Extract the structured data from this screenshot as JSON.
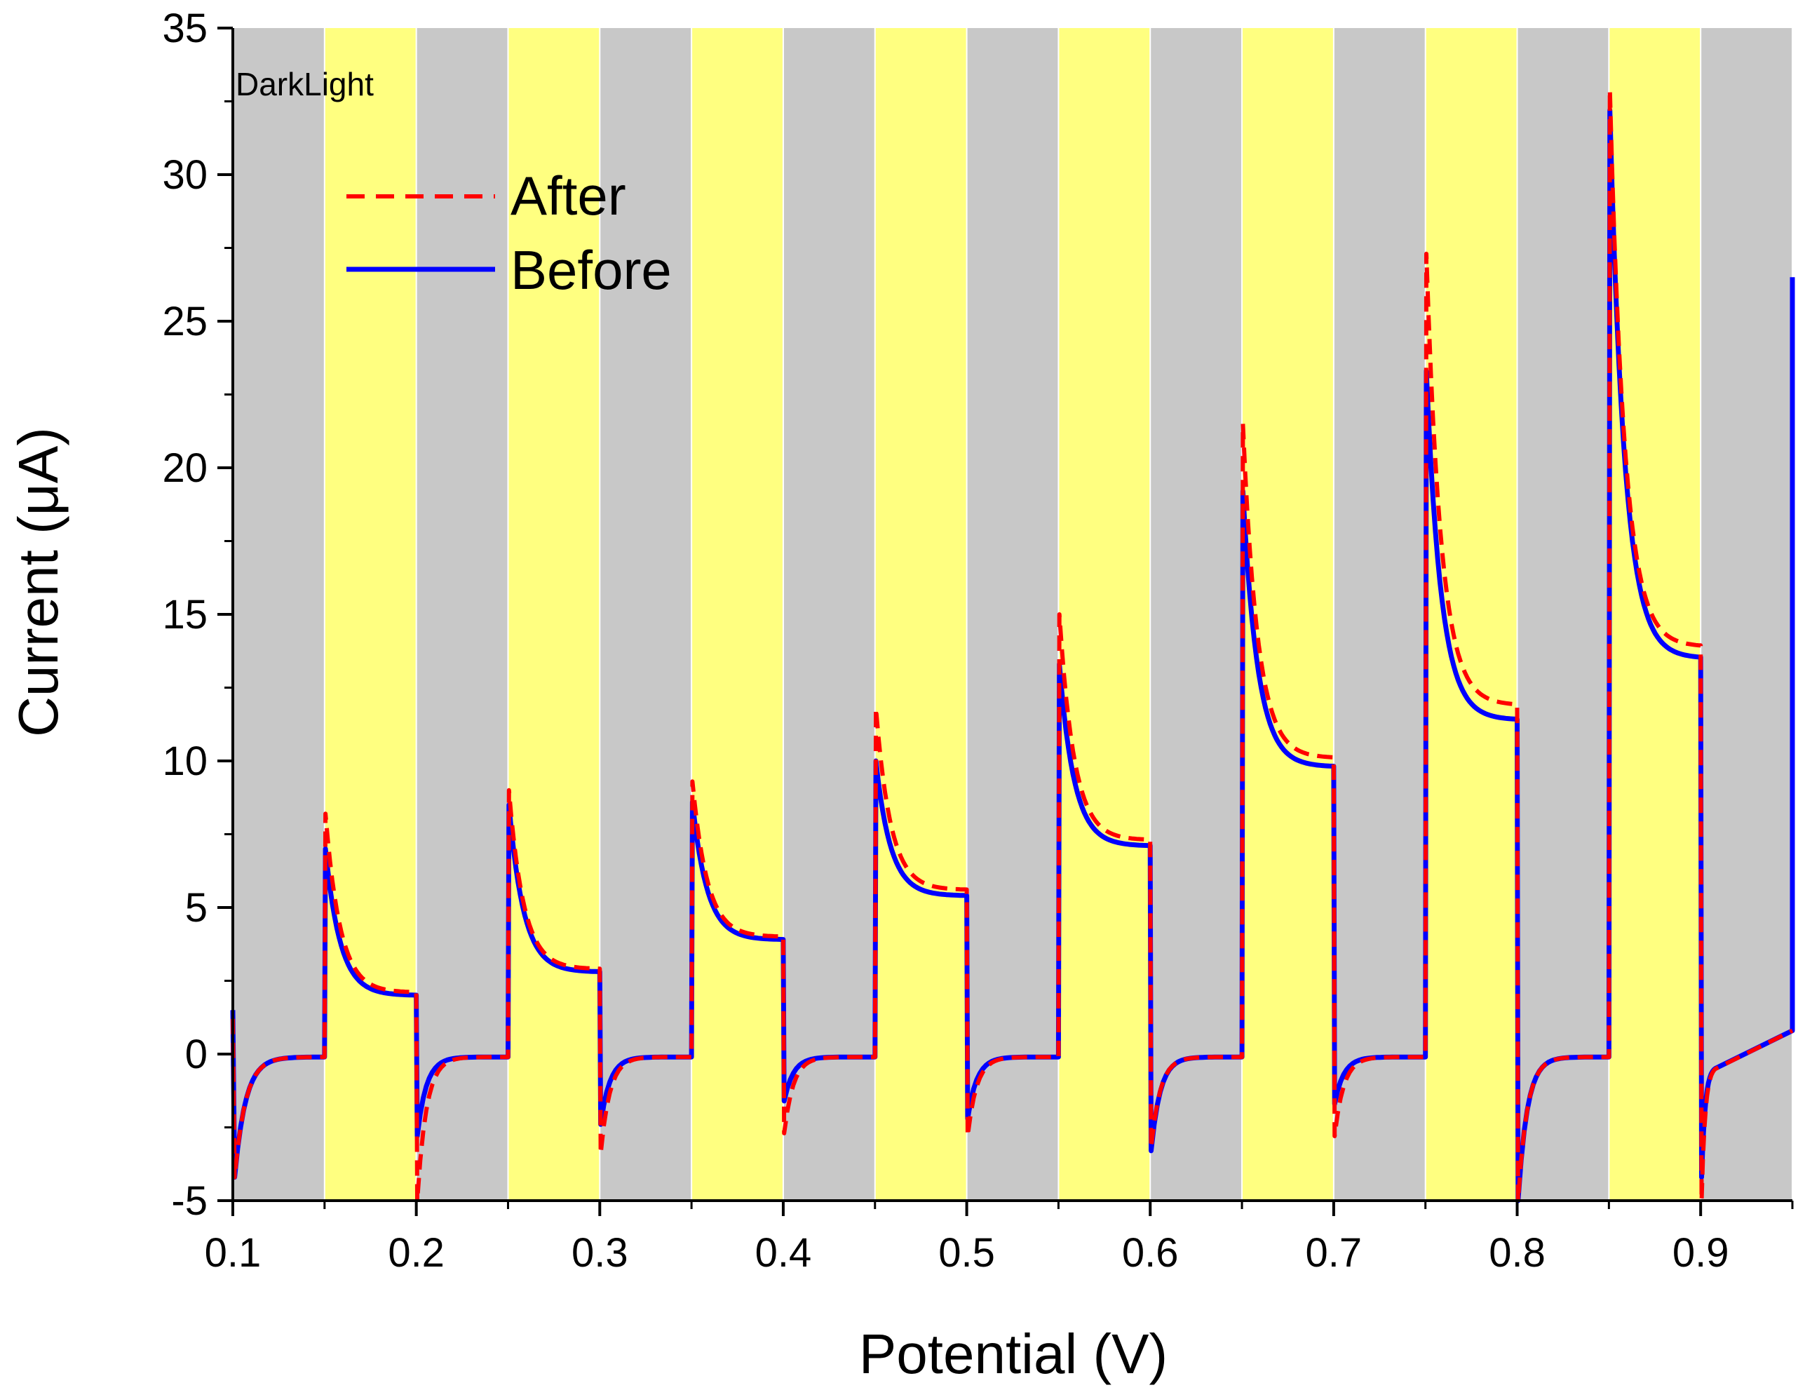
{
  "chart_data": {
    "type": "line",
    "title": "",
    "xlabel": "Potential (V)",
    "ylabel": "Current (μA)",
    "xlim": [
      0.1,
      0.95
    ],
    "ylim": [
      -5,
      35
    ],
    "xticks": [
      0.1,
      0.2,
      0.3,
      0.4,
      0.5,
      0.6,
      0.7,
      0.8,
      0.9
    ],
    "yticks": [
      -5,
      0,
      5,
      10,
      15,
      20,
      25,
      30,
      35
    ],
    "xtick_labels": [
      "0.1",
      "0.2",
      "0.3",
      "0.4",
      "0.5",
      "0.6",
      "0.7",
      "0.8",
      "0.9"
    ],
    "ytick_labels": [
      "-5",
      "0",
      "5",
      "10",
      "15",
      "20",
      "25",
      "30",
      "35"
    ],
    "grid": false,
    "annotation": "DarkLight",
    "background_bands": {
      "dark_color": "#c8c8c8",
      "light_color": "#ffff80",
      "intervals": [
        {
          "state": "dark",
          "x0": 0.1,
          "x1": 0.15
        },
        {
          "state": "light",
          "x0": 0.15,
          "x1": 0.2
        },
        {
          "state": "dark",
          "x0": 0.2,
          "x1": 0.25
        },
        {
          "state": "light",
          "x0": 0.25,
          "x1": 0.3
        },
        {
          "state": "dark",
          "x0": 0.3,
          "x1": 0.35
        },
        {
          "state": "light",
          "x0": 0.35,
          "x1": 0.4
        },
        {
          "state": "dark",
          "x0": 0.4,
          "x1": 0.45
        },
        {
          "state": "light",
          "x0": 0.45,
          "x1": 0.5
        },
        {
          "state": "dark",
          "x0": 0.5,
          "x1": 0.55
        },
        {
          "state": "light",
          "x0": 0.55,
          "x1": 0.6
        },
        {
          "state": "dark",
          "x0": 0.6,
          "x1": 0.65
        },
        {
          "state": "light",
          "x0": 0.65,
          "x1": 0.7
        },
        {
          "state": "dark",
          "x0": 0.7,
          "x1": 0.75
        },
        {
          "state": "light",
          "x0": 0.75,
          "x1": 0.8
        },
        {
          "state": "dark",
          "x0": 0.8,
          "x1": 0.85
        },
        {
          "state": "light",
          "x0": 0.85,
          "x1": 0.9
        },
        {
          "state": "dark",
          "x0": 0.9,
          "x1": 0.95
        }
      ]
    },
    "legend": {
      "position": "top-left",
      "entries": [
        "After",
        "Before"
      ]
    },
    "series": [
      {
        "name": "After",
        "color": "#ff0000",
        "style": "dashed",
        "cycles": [
          {
            "on": 0.15,
            "off": 0.2,
            "spike": 8.2,
            "plateau": 2.1,
            "dark_start": 1.2,
            "neg_spike": -5.0,
            "neg_recover": -0.6
          },
          {
            "on": 0.25,
            "off": 0.3,
            "spike": 9.0,
            "plateau": 2.9,
            "dark_start": 0,
            "neg_spike": -3.4,
            "neg_recover": -0.5
          },
          {
            "on": 0.35,
            "off": 0.4,
            "spike": 9.3,
            "plateau": 4.0,
            "dark_start": 0,
            "neg_spike": -2.7,
            "neg_recover": -0.5
          },
          {
            "on": 0.45,
            "off": 0.5,
            "spike": 11.8,
            "plateau": 5.6,
            "dark_start": 0,
            "neg_spike": -2.8,
            "neg_recover": -0.5
          },
          {
            "on": 0.55,
            "off": 0.6,
            "spike": 15.0,
            "plateau": 7.3,
            "dark_start": 0,
            "neg_spike": -3.2,
            "neg_recover": -0.5
          },
          {
            "on": 0.65,
            "off": 0.7,
            "spike": 21.5,
            "plateau": 10.1,
            "dark_start": 0,
            "neg_spike": -2.8,
            "neg_recover": -0.5
          },
          {
            "on": 0.75,
            "off": 0.8,
            "spike": 27.3,
            "plateau": 11.9,
            "dark_start": 0,
            "neg_spike": -5.0,
            "neg_recover": -0.5
          },
          {
            "on": 0.85,
            "off": 0.9,
            "spike": 32.9,
            "plateau": 13.9,
            "dark_start": 0,
            "neg_spike": -5.0,
            "neg_recover": -0.5
          }
        ],
        "end_value": 0.8
      },
      {
        "name": "Before",
        "color": "#0000ff",
        "style": "solid",
        "cycles": [
          {
            "on": 0.15,
            "off": 0.2,
            "spike": 7.0,
            "plateau": 2.0,
            "dark_start": 1.5,
            "neg_spike": -2.8,
            "neg_recover": -0.5
          },
          {
            "on": 0.25,
            "off": 0.3,
            "spike": 8.5,
            "plateau": 2.8,
            "dark_start": 0,
            "neg_spike": -2.4,
            "neg_recover": -0.4
          },
          {
            "on": 0.35,
            "off": 0.4,
            "spike": 8.6,
            "plateau": 3.9,
            "dark_start": 0,
            "neg_spike": -1.6,
            "neg_recover": -0.4
          },
          {
            "on": 0.45,
            "off": 0.5,
            "spike": 10.0,
            "plateau": 5.4,
            "dark_start": 0,
            "neg_spike": -2.2,
            "neg_recover": -0.4
          },
          {
            "on": 0.55,
            "off": 0.6,
            "spike": 13.3,
            "plateau": 7.1,
            "dark_start": 0,
            "neg_spike": -3.3,
            "neg_recover": -0.4
          },
          {
            "on": 0.65,
            "off": 0.7,
            "spike": 19.2,
            "plateau": 9.8,
            "dark_start": 0,
            "neg_spike": -1.7,
            "neg_recover": -0.4
          },
          {
            "on": 0.75,
            "off": 0.8,
            "spike": 23.3,
            "plateau": 11.4,
            "dark_start": 0,
            "neg_spike": -5.0,
            "neg_recover": -0.4
          },
          {
            "on": 0.85,
            "off": 0.9,
            "spike": 32.2,
            "plateau": 13.5,
            "dark_start": 0,
            "neg_spike": -4.2,
            "neg_recover": -0.4
          }
        ],
        "end_value": 0.8,
        "final_jump": 26.5
      }
    ]
  }
}
